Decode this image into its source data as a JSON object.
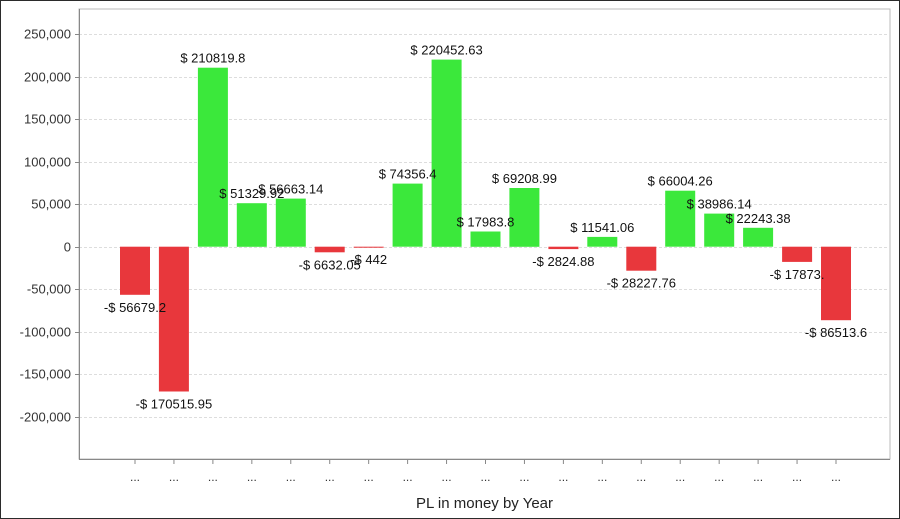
{
  "colors": {
    "positive": "#3be83b",
    "negative": "#e8373c",
    "grid": "#dddddd",
    "axis": "#888888"
  },
  "chart_data": {
    "type": "bar",
    "title": "",
    "xlabel": "PL in money by Year",
    "ylabel": "",
    "ylim": [
      -250000,
      280000
    ],
    "yticks": [
      -200000,
      -150000,
      -100000,
      -50000,
      0,
      50000,
      100000,
      150000,
      200000,
      250000
    ],
    "ytick_labels": [
      "-200,000",
      "-150,000",
      "-100,000",
      "-50,000",
      "0",
      "50,000",
      "100,000",
      "150,000",
      "200,000",
      "250,000"
    ],
    "grid": true,
    "categories": [
      "...",
      "...",
      "...",
      "...",
      "...",
      "...",
      "...",
      "...",
      "...",
      "...",
      "...",
      "...",
      "...",
      "...",
      "...",
      "...",
      "...",
      "...",
      "..."
    ],
    "values": [
      -56679.2,
      -170515.95,
      210819.8,
      51329.92,
      56663.14,
      -6632.05,
      -442,
      74356.4,
      220452.63,
      17983.8,
      69208.99,
      -2824.88,
      11541.06,
      -28227.76,
      66004.26,
      38986.14,
      22243.38,
      -17873,
      -86513.6
    ],
    "data_labels": [
      "-$ 56679.2",
      "-$ 170515.95",
      "$ 210819.8",
      "$ 51329.92",
      "$ 56663.14",
      "-$ 6632.05",
      "-$ 442",
      "$ 74356.4",
      "$ 220452.63",
      "$ 17983.8",
      "$ 69208.99",
      "-$ 2824.88",
      "$ 11541.06",
      "-$ 28227.76",
      "$ 66004.26",
      "$ 38986.14",
      "$ 22243.38",
      "-$ 17873.",
      "-$ 86513.6"
    ]
  }
}
